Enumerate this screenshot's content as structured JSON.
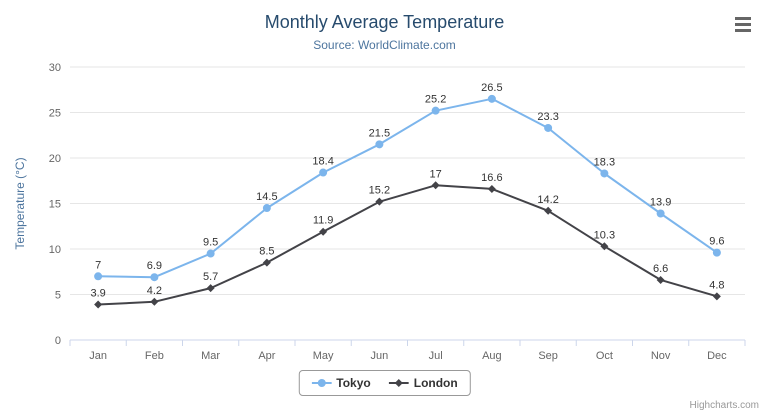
{
  "header": {
    "title": "Monthly Average Temperature",
    "subtitle": "Source: WorldClimate.com"
  },
  "credits": "Highcharts.com",
  "colors": {
    "tokyo": "#7cb5ec",
    "london": "#434348",
    "grid": "#e6e6e6",
    "axis_line": "#ccd6eb",
    "label": "#666666",
    "data_label": "#333333",
    "title": "#274b6d",
    "subtitle": "#4d759e",
    "axis_title": "#4d759e",
    "legend_border": "#999999"
  },
  "chart_data": {
    "type": "line",
    "title": "Monthly Average Temperature",
    "subtitle": "Source: WorldClimate.com",
    "categories": [
      "Jan",
      "Feb",
      "Mar",
      "Apr",
      "May",
      "Jun",
      "Jul",
      "Aug",
      "Sep",
      "Oct",
      "Nov",
      "Dec"
    ],
    "series": [
      {
        "name": "Tokyo",
        "marker": "circle",
        "color": "#7cb5ec",
        "values": [
          7,
          6.9,
          9.5,
          14.5,
          18.4,
          21.5,
          25.2,
          26.5,
          23.3,
          18.3,
          13.9,
          9.6
        ]
      },
      {
        "name": "London",
        "marker": "diamond",
        "color": "#434348",
        "values": [
          3.9,
          4.2,
          5.7,
          8.5,
          11.9,
          15.2,
          17,
          16.6,
          14.2,
          10.3,
          6.6,
          4.8
        ]
      }
    ],
    "xlabel": "",
    "ylabel": "Temperature (°C)",
    "ylim": [
      0,
      30
    ],
    "ytick_interval": 5,
    "grid": true,
    "data_labels": true,
    "legend_position": "bottom"
  }
}
